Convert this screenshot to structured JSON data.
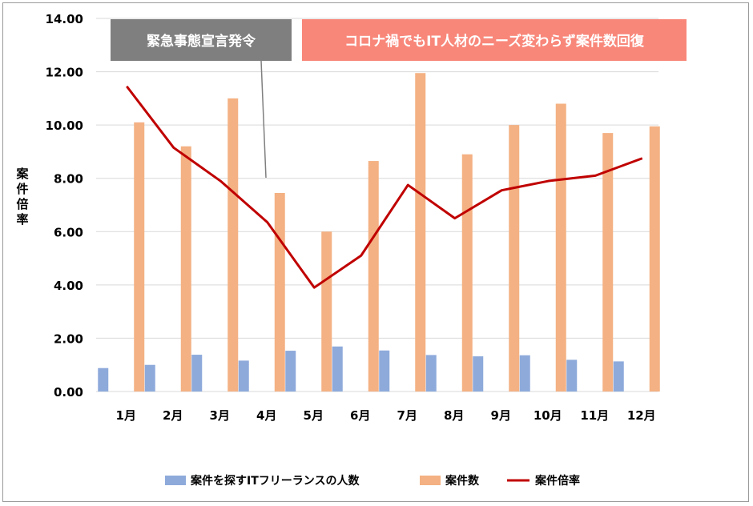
{
  "chart_data": {
    "type": "bar",
    "categories": [
      "1月",
      "2月",
      "3月",
      "4月",
      "5月",
      "6月",
      "7月",
      "8月",
      "9月",
      "10月",
      "11月",
      "12月"
    ],
    "series": [
      {
        "name": "案件を探すITフリーランスの人数",
        "kind": "bar",
        "color": "#8eaadb",
        "values": [
          0.88,
          1.0,
          1.38,
          1.16,
          1.53,
          1.69,
          1.54,
          1.37,
          1.32,
          1.36,
          1.19,
          1.13
        ]
      },
      {
        "name": "案件数",
        "kind": "bar",
        "color": "#f4b183",
        "values": [
          10.1,
          9.2,
          11.0,
          7.45,
          6.0,
          8.65,
          11.95,
          8.9,
          10.0,
          10.8,
          9.7,
          9.95
        ]
      },
      {
        "name": "案件倍率",
        "kind": "line",
        "color": "#c00000",
        "values": [
          11.45,
          9.15,
          7.9,
          6.35,
          3.9,
          5.1,
          7.75,
          6.5,
          7.55,
          7.9,
          8.1,
          8.75
        ]
      }
    ],
    "yticks": [
      "0.00",
      "2.00",
      "4.00",
      "6.00",
      "8.00",
      "10.00",
      "12.00",
      "14.00"
    ],
    "ylim": [
      0,
      14
    ],
    "ylabel": "案件倍率",
    "xlabel": "",
    "grid": true,
    "legend_position": "bottom",
    "annotations": [
      {
        "text": "緊急事態宣言発令",
        "color": "#7f7f7f",
        "points_to": "4月"
      },
      {
        "text": "コロナ禍でもIT人材のニーズ変わらず案件数回復",
        "color": "#f8877a"
      }
    ]
  }
}
